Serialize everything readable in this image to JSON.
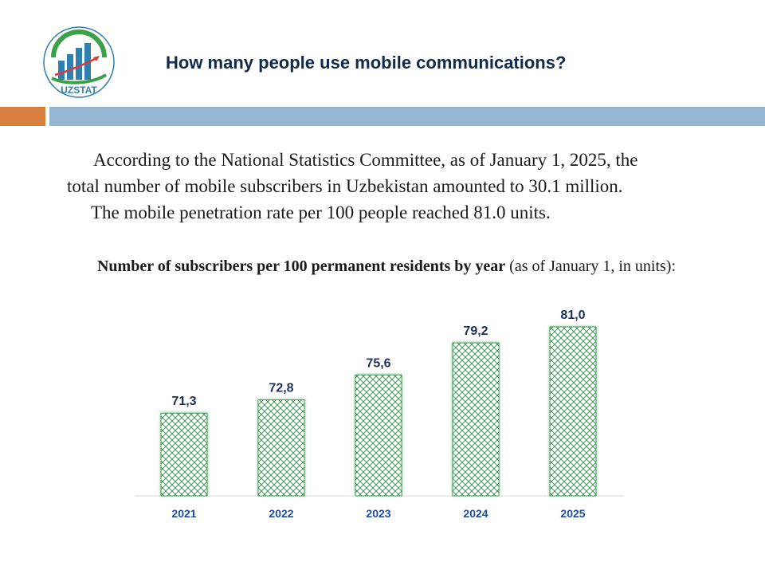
{
  "header": {
    "title": "How many people use mobile communications?",
    "logo_text": "UZSTAT"
  },
  "intro": {
    "line1": "According to the National Statistics Committee, as of January 1, 2025, the",
    "line2": "total number of mobile subscribers in Uzbekistan amounted to 30.1 million.",
    "line3": "The mobile penetration rate per 100 people reached 81.0 units."
  },
  "colors": {
    "title": "#0f2a4a",
    "accent_orange": "#d8803f",
    "header_blue": "#94b6d2",
    "bar_hatch": "#2e8b45",
    "label_navy": "#1f2f5c",
    "year_blue": "#1f4ea0"
  },
  "chart_data": {
    "type": "bar",
    "title_bold": "Number of subscribers per 100 permanent residents by year",
    "title_rest": " (as of January 1, in units):",
    "categories": [
      "2021",
      "2022",
      "2023",
      "2024",
      "2025"
    ],
    "values": [
      71.3,
      72.8,
      75.6,
      79.2,
      81.0
    ],
    "value_labels": [
      "71,3",
      "72,8",
      "75,6",
      "79,2",
      "81,0"
    ],
    "xlabel": "",
    "ylabel": "",
    "grid": false,
    "legend": "none"
  }
}
